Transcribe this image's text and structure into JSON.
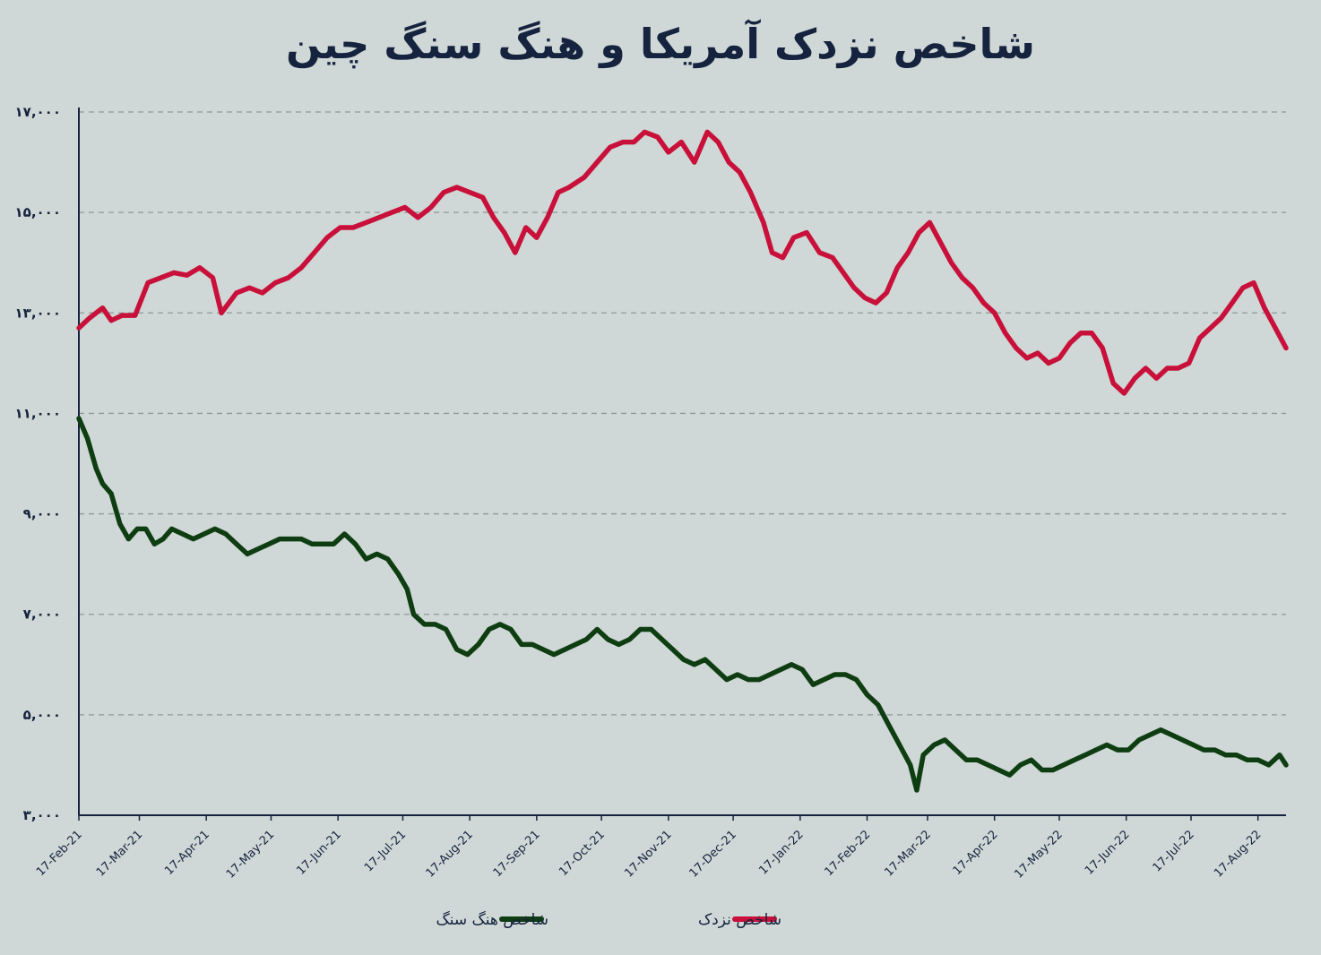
{
  "chart_data": {
    "type": "line",
    "title": "شاخص نزدک آمریکا و هنگ سنگ چین",
    "xlabel": "",
    "ylabel": "",
    "ylim": [
      3000,
      17000
    ],
    "yticks": [
      {
        "value": 17000,
        "label": "۱۷,۰۰۰"
      },
      {
        "value": 15000,
        "label": "۱۵,۰۰۰"
      },
      {
        "value": 13000,
        "label": "۱۳,۰۰۰"
      },
      {
        "value": 11000,
        "label": "۱۱,۰۰۰"
      },
      {
        "value": 9000,
        "label": "۹,۰۰۰"
      },
      {
        "value": 7000,
        "label": "۷,۰۰۰"
      },
      {
        "value": 5000,
        "label": "۵,۰۰۰"
      },
      {
        "value": 3000,
        "label": "۳,۰۰۰"
      }
    ],
    "xticks": [
      "17-Feb-21",
      "17-Mar-21",
      "17-Apr-21",
      "17-May-21",
      "17-Jun-21",
      "17-Jul-21",
      "17-Aug-21",
      "17-Sep-21",
      "17-Oct-21",
      "17-Nov-21",
      "17-Dec-21",
      "17-Jan-22",
      "17-Feb-22",
      "17-Mar-22",
      "17-Apr-22",
      "17-May-22",
      "17-Jun-22",
      "17-Jul-22",
      "17-Aug-22"
    ],
    "grid": true,
    "legend_position": "bottom-center",
    "x_range": [
      "17-Feb-21",
      "30-Aug-22"
    ],
    "series": [
      {
        "name": "شاخص نزدک",
        "color": "#c8103a",
        "points": [
          [
            "17-Feb-21",
            12700
          ],
          [
            "22-Feb-21",
            12900
          ],
          [
            "28-Feb-21",
            13100
          ],
          [
            "04-Mar-21",
            12850
          ],
          [
            "09-Mar-21",
            12950
          ],
          [
            "15-Mar-21",
            12950
          ],
          [
            "21-Mar-21",
            13600
          ],
          [
            "27-Mar-21",
            13700
          ],
          [
            "02-Apr-21",
            13800
          ],
          [
            "08-Apr-21",
            13750
          ],
          [
            "14-Apr-21",
            13900
          ],
          [
            "20-Apr-21",
            13700
          ],
          [
            "24-Apr-21",
            13000
          ],
          [
            "01-May-21",
            13400
          ],
          [
            "07-May-21",
            13500
          ],
          [
            "13-May-21",
            13400
          ],
          [
            "19-May-21",
            13600
          ],
          [
            "25-May-21",
            13700
          ],
          [
            "31-May-21",
            13900
          ],
          [
            "06-Jun-21",
            14200
          ],
          [
            "12-Jun-21",
            14500
          ],
          [
            "18-Jun-21",
            14700
          ],
          [
            "24-Jun-21",
            14700
          ],
          [
            "30-Jun-21",
            14800
          ],
          [
            "06-Jul-21",
            14900
          ],
          [
            "12-Jul-21",
            15000
          ],
          [
            "18-Jul-21",
            15100
          ],
          [
            "24-Jul-21",
            14900
          ],
          [
            "30-Jul-21",
            15100
          ],
          [
            "05-Aug-21",
            15400
          ],
          [
            "11-Aug-21",
            15500
          ],
          [
            "17-Aug-21",
            15400
          ],
          [
            "23-Aug-21",
            15300
          ],
          [
            "28-Aug-21",
            14900
          ],
          [
            "02-Sep-21",
            14600
          ],
          [
            "07-Sep-21",
            14200
          ],
          [
            "12-Sep-21",
            14700
          ],
          [
            "17-Sep-21",
            14500
          ],
          [
            "22-Sep-21",
            14900
          ],
          [
            "27-Sep-21",
            15400
          ],
          [
            "02-Oct-21",
            15500
          ],
          [
            "09-Oct-21",
            15700
          ],
          [
            "15-Oct-21",
            16000
          ],
          [
            "21-Oct-21",
            16300
          ],
          [
            "27-Oct-21",
            16400
          ],
          [
            "01-Nov-21",
            16400
          ],
          [
            "06-Nov-21",
            16600
          ],
          [
            "12-Nov-21",
            16500
          ],
          [
            "17-Nov-21",
            16200
          ],
          [
            "23-Nov-21",
            16400
          ],
          [
            "29-Nov-21",
            16000
          ],
          [
            "05-Dec-21",
            16600
          ],
          [
            "10-Dec-21",
            16400
          ],
          [
            "15-Dec-21",
            16000
          ],
          [
            "20-Dec-21",
            15800
          ],
          [
            "25-Dec-21",
            15400
          ],
          [
            "31-Dec-21",
            14800
          ],
          [
            "04-Jan-22",
            14200
          ],
          [
            "09-Jan-22",
            14100
          ],
          [
            "14-Jan-22",
            14500
          ],
          [
            "20-Jan-22",
            14600
          ],
          [
            "26-Jan-22",
            14200
          ],
          [
            "01-Feb-22",
            14100
          ],
          [
            "06-Feb-22",
            13800
          ],
          [
            "11-Feb-22",
            13500
          ],
          [
            "16-Feb-22",
            13300
          ],
          [
            "21-Feb-22",
            13200
          ],
          [
            "26-Feb-22",
            13400
          ],
          [
            "03-Mar-22",
            13900
          ],
          [
            "08-Mar-22",
            14200
          ],
          [
            "13-Mar-22",
            14600
          ],
          [
            "18-Mar-22",
            14800
          ],
          [
            "23-Mar-22",
            14400
          ],
          [
            "28-Mar-22",
            14000
          ],
          [
            "02-Apr-22",
            13700
          ],
          [
            "07-Apr-22",
            13500
          ],
          [
            "12-Apr-22",
            13200
          ],
          [
            "17-Apr-22",
            13000
          ],
          [
            "22-Apr-22",
            12600
          ],
          [
            "27-Apr-22",
            12300
          ],
          [
            "02-May-22",
            12100
          ],
          [
            "07-May-22",
            12200
          ],
          [
            "12-May-22",
            12000
          ],
          [
            "17-May-22",
            12100
          ],
          [
            "22-May-22",
            12400
          ],
          [
            "27-May-22",
            12600
          ],
          [
            "01-Jun-22",
            12600
          ],
          [
            "06-Jun-22",
            12300
          ],
          [
            "11-Jun-22",
            11600
          ],
          [
            "16-Jun-22",
            11400
          ],
          [
            "21-Jun-22",
            11700
          ],
          [
            "26-Jun-22",
            11900
          ],
          [
            "01-Jul-22",
            11700
          ],
          [
            "06-Jul-22",
            11900
          ],
          [
            "11-Jul-22",
            11900
          ],
          [
            "16-Jul-22",
            12000
          ],
          [
            "21-Jul-22",
            12500
          ],
          [
            "26-Jul-22",
            12700
          ],
          [
            "31-Jul-22",
            12900
          ],
          [
            "05-Aug-22",
            13200
          ],
          [
            "10-Aug-22",
            13500
          ],
          [
            "15-Aug-22",
            13600
          ],
          [
            "20-Aug-22",
            13100
          ],
          [
            "25-Aug-22",
            12700
          ],
          [
            "30-Aug-22",
            12300
          ]
        ]
      },
      {
        "name": "شاخص هنگ سنگ",
        "color": "#0f3d12",
        "points": [
          [
            "17-Feb-21",
            10900
          ],
          [
            "21-Feb-21",
            10500
          ],
          [
            "25-Feb-21",
            9900
          ],
          [
            "28-Feb-21",
            9600
          ],
          [
            "04-Mar-21",
            9400
          ],
          [
            "08-Mar-21",
            8800
          ],
          [
            "12-Mar-21",
            8500
          ],
          [
            "16-Mar-21",
            8700
          ],
          [
            "20-Mar-21",
            8700
          ],
          [
            "24-Mar-21",
            8400
          ],
          [
            "28-Mar-21",
            8500
          ],
          [
            "01-Apr-21",
            8700
          ],
          [
            "06-Apr-21",
            8600
          ],
          [
            "11-Apr-21",
            8500
          ],
          [
            "16-Apr-21",
            8600
          ],
          [
            "21-Apr-21",
            8700
          ],
          [
            "26-Apr-21",
            8600
          ],
          [
            "01-May-21",
            8400
          ],
          [
            "06-May-21",
            8200
          ],
          [
            "11-May-21",
            8300
          ],
          [
            "16-May-21",
            8400
          ],
          [
            "21-May-21",
            8500
          ],
          [
            "26-May-21",
            8500
          ],
          [
            "31-May-21",
            8500
          ],
          [
            "05-Jun-21",
            8400
          ],
          [
            "10-Jun-21",
            8400
          ],
          [
            "15-Jun-21",
            8400
          ],
          [
            "20-Jun-21",
            8600
          ],
          [
            "25-Jun-21",
            8400
          ],
          [
            "30-Jun-21",
            8100
          ],
          [
            "05-Jul-21",
            8200
          ],
          [
            "10-Jul-21",
            8100
          ],
          [
            "15-Jul-21",
            7800
          ],
          [
            "19-Jul-21",
            7500
          ],
          [
            "22-Jul-21",
            7000
          ],
          [
            "27-Jul-21",
            6800
          ],
          [
            "01-Aug-21",
            6800
          ],
          [
            "06-Aug-21",
            6700
          ],
          [
            "11-Aug-21",
            6300
          ],
          [
            "16-Aug-21",
            6200
          ],
          [
            "21-Aug-21",
            6400
          ],
          [
            "26-Aug-21",
            6700
          ],
          [
            "31-Aug-21",
            6800
          ],
          [
            "05-Sep-21",
            6700
          ],
          [
            "10-Sep-21",
            6400
          ],
          [
            "15-Sep-21",
            6400
          ],
          [
            "20-Sep-21",
            6300
          ],
          [
            "25-Sep-21",
            6200
          ],
          [
            "30-Sep-21",
            6300
          ],
          [
            "05-Oct-21",
            6400
          ],
          [
            "10-Oct-21",
            6500
          ],
          [
            "15-Oct-21",
            6700
          ],
          [
            "20-Oct-21",
            6500
          ],
          [
            "25-Oct-21",
            6400
          ],
          [
            "30-Oct-21",
            6500
          ],
          [
            "04-Nov-21",
            6700
          ],
          [
            "09-Nov-21",
            6700
          ],
          [
            "14-Nov-21",
            6500
          ],
          [
            "19-Nov-21",
            6300
          ],
          [
            "24-Nov-21",
            6100
          ],
          [
            "29-Nov-21",
            6000
          ],
          [
            "04-Dec-21",
            6100
          ],
          [
            "09-Dec-21",
            5900
          ],
          [
            "14-Dec-21",
            5700
          ],
          [
            "19-Dec-21",
            5800
          ],
          [
            "24-Dec-21",
            5700
          ],
          [
            "29-Dec-21",
            5700
          ],
          [
            "03-Jan-22",
            5800
          ],
          [
            "08-Jan-22",
            5900
          ],
          [
            "13-Jan-22",
            6000
          ],
          [
            "18-Jan-22",
            5900
          ],
          [
            "23-Jan-22",
            5600
          ],
          [
            "28-Jan-22",
            5700
          ],
          [
            "02-Feb-22",
            5800
          ],
          [
            "07-Feb-22",
            5800
          ],
          [
            "12-Feb-22",
            5700
          ],
          [
            "17-Feb-22",
            5400
          ],
          [
            "22-Feb-22",
            5200
          ],
          [
            "27-Feb-22",
            4800
          ],
          [
            "04-Mar-22",
            4400
          ],
          [
            "09-Mar-22",
            4000
          ],
          [
            "12-Mar-22",
            3500
          ],
          [
            "15-Mar-22",
            4200
          ],
          [
            "20-Mar-22",
            4400
          ],
          [
            "25-Mar-22",
            4500
          ],
          [
            "30-Mar-22",
            4300
          ],
          [
            "04-Apr-22",
            4100
          ],
          [
            "09-Apr-22",
            4100
          ],
          [
            "14-Apr-22",
            4000
          ],
          [
            "19-Apr-22",
            3900
          ],
          [
            "24-Apr-22",
            3800
          ],
          [
            "29-Apr-22",
            4000
          ],
          [
            "04-May-22",
            4100
          ],
          [
            "09-May-22",
            3900
          ],
          [
            "14-May-22",
            3900
          ],
          [
            "19-May-22",
            4000
          ],
          [
            "24-May-22",
            4100
          ],
          [
            "29-May-22",
            4200
          ],
          [
            "03-Jun-22",
            4300
          ],
          [
            "08-Jun-22",
            4400
          ],
          [
            "13-Jun-22",
            4300
          ],
          [
            "18-Jun-22",
            4300
          ],
          [
            "23-Jun-22",
            4500
          ],
          [
            "28-Jun-22",
            4600
          ],
          [
            "03-Jul-22",
            4700
          ],
          [
            "08-Jul-22",
            4600
          ],
          [
            "13-Jul-22",
            4500
          ],
          [
            "18-Jul-22",
            4400
          ],
          [
            "23-Jul-22",
            4300
          ],
          [
            "28-Jul-22",
            4300
          ],
          [
            "02-Aug-22",
            4200
          ],
          [
            "07-Aug-22",
            4200
          ],
          [
            "12-Aug-22",
            4100
          ],
          [
            "17-Aug-22",
            4100
          ],
          [
            "22-Aug-22",
            4000
          ],
          [
            "27-Aug-22",
            4200
          ],
          [
            "30-Aug-22",
            4000
          ]
        ]
      }
    ]
  }
}
